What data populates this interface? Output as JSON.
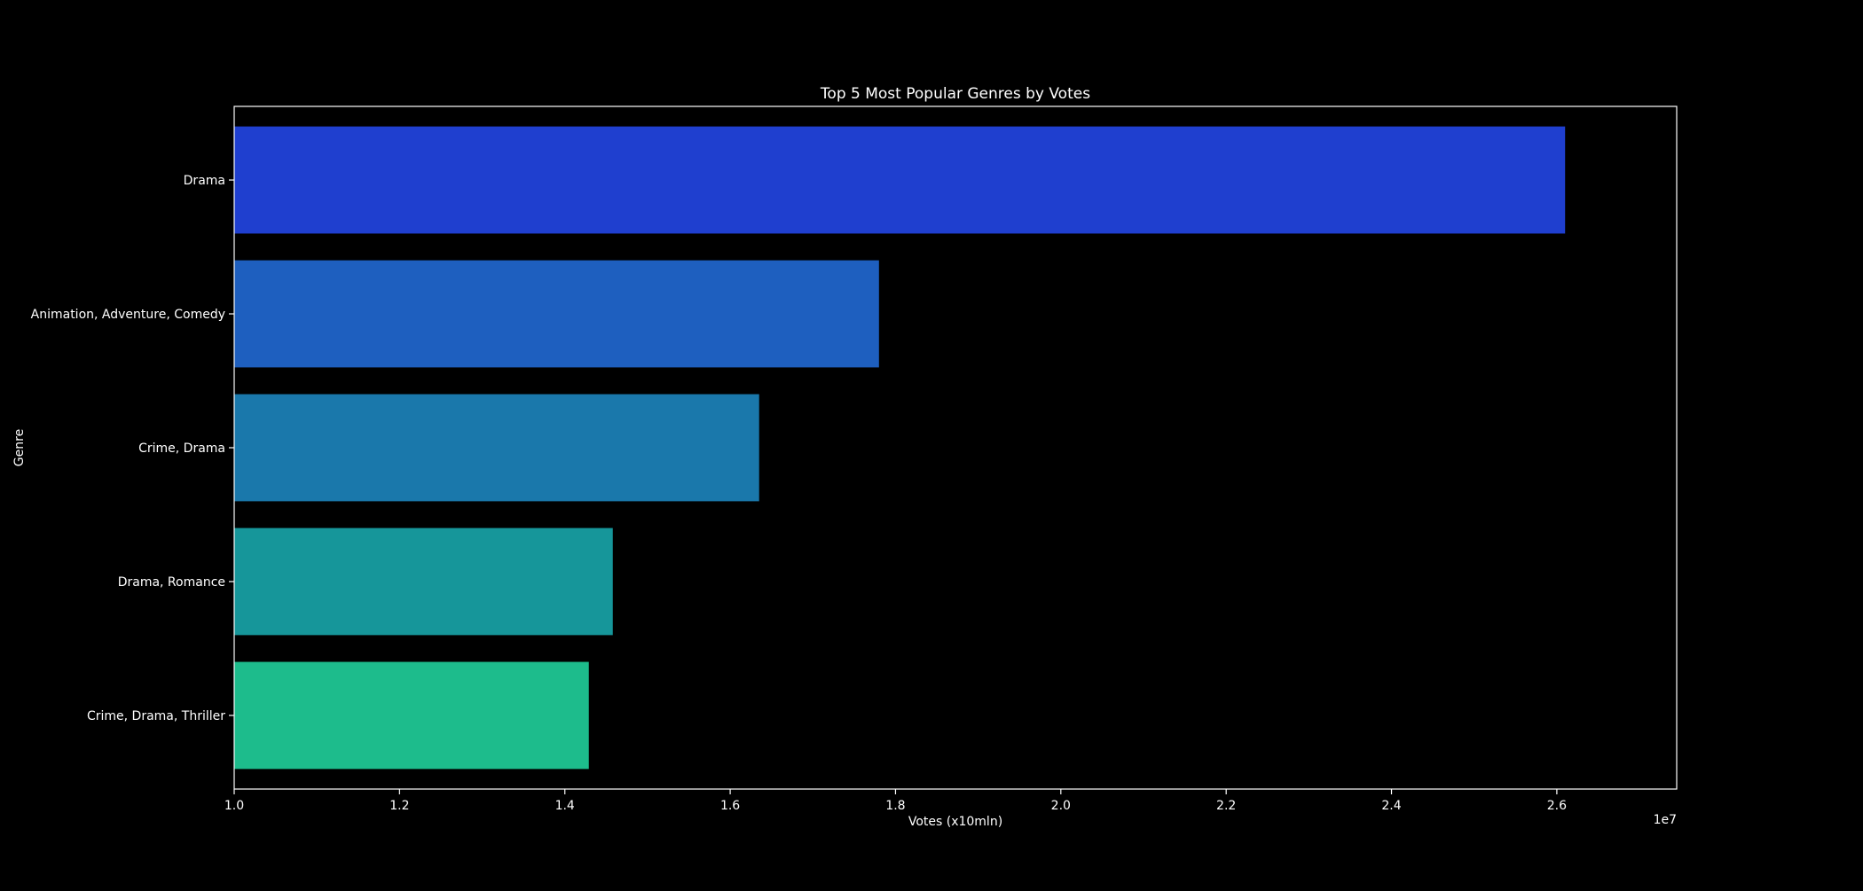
{
  "chart_data": {
    "type": "bar",
    "orientation": "horizontal",
    "title": "Top 5 Most Popular Genres by Votes",
    "xlabel": "Votes (x10mln)",
    "ylabel": "Genre",
    "x_offset_label": "1e7",
    "x_scale_factor": 10000000,
    "xlim": [
      1.0,
      2.745
    ],
    "x_ticks": [
      1.0,
      1.2,
      1.4,
      1.6,
      1.8,
      2.0,
      2.2,
      2.4,
      2.6
    ],
    "x_tick_labels": [
      "1.0",
      "1.2",
      "1.4",
      "1.6",
      "1.8",
      "2.0",
      "2.2",
      "2.4",
      "2.6"
    ],
    "categories": [
      "Drama",
      "Animation, Adventure, Comedy",
      "Crime, Drama",
      "Drama, Romance",
      "Crime, Drama, Thriller"
    ],
    "values": [
      26100000,
      17800000,
      16350000,
      14580000,
      14290000
    ],
    "colors": [
      "#1f3fcf",
      "#1e5fbf",
      "#1a78ab",
      "#16969a",
      "#1dbc8c"
    ],
    "grid": false,
    "legend": "none",
    "background": "#000000",
    "axis_color": "#ffffff"
  }
}
